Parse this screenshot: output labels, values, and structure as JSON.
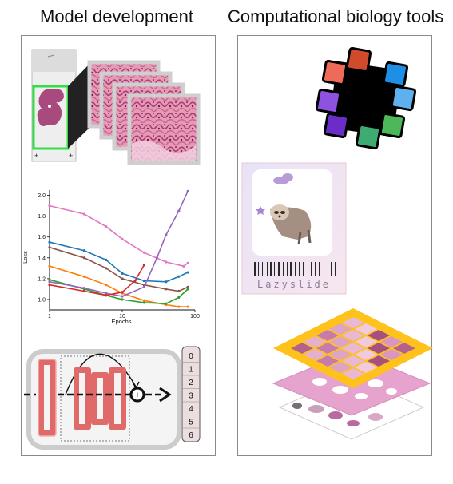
{
  "headings": {
    "left": "Model development",
    "right": "Computational biology tools"
  },
  "chart_data": {
    "type": "line",
    "xscale": "log",
    "xlim": [
      1,
      100
    ],
    "ylim": [
      0.9,
      2.05
    ],
    "xlabel": "Epochs",
    "ylabel": "Loss",
    "xticks": [
      "1",
      "10",
      "100"
    ],
    "yticks": [
      "1.0",
      "1.2",
      "1.4",
      "1.6",
      "1.8",
      "2.0"
    ],
    "grid": false,
    "series": [
      {
        "color": "#e377c2",
        "x": [
          1,
          3,
          6,
          10,
          20,
          40,
          70,
          80
        ],
        "y": [
          1.9,
          1.82,
          1.7,
          1.58,
          1.45,
          1.36,
          1.32,
          1.35
        ]
      },
      {
        "color": "#1f77b4",
        "x": [
          1,
          3,
          6,
          10,
          20,
          40,
          60,
          80
        ],
        "y": [
          1.55,
          1.47,
          1.38,
          1.25,
          1.18,
          1.17,
          1.22,
          1.26
        ]
      },
      {
        "color": "#8c564b",
        "x": [
          1,
          3,
          6,
          10,
          20,
          40,
          60,
          80
        ],
        "y": [
          1.5,
          1.4,
          1.3,
          1.2,
          1.14,
          1.1,
          1.08,
          1.12
        ]
      },
      {
        "color": "#ff7f0e",
        "x": [
          1,
          3,
          6,
          10,
          20,
          40,
          60,
          80
        ],
        "y": [
          1.32,
          1.22,
          1.14,
          1.06,
          0.99,
          0.95,
          0.93,
          0.93
        ]
      },
      {
        "color": "#2ca02c",
        "x": [
          1,
          3,
          6,
          10,
          20,
          40,
          60,
          80
        ],
        "y": [
          1.19,
          1.1,
          1.04,
          1.0,
          0.97,
          0.96,
          1.02,
          1.1
        ]
      },
      {
        "color": "#9467bd",
        "x": [
          1,
          3,
          6,
          10,
          20,
          30,
          40,
          60,
          80
        ],
        "y": [
          1.17,
          1.11,
          1.06,
          1.03,
          1.12,
          1.4,
          1.62,
          1.85,
          2.04
        ]
      },
      {
        "color": "#d62728",
        "x": [
          1,
          3,
          6,
          10,
          15,
          20
        ],
        "y": [
          1.14,
          1.08,
          1.04,
          1.07,
          1.18,
          1.33
        ]
      }
    ]
  },
  "class_labels": [
    "0",
    "1",
    "2",
    "3",
    "4",
    "5",
    "6"
  ],
  "barcode_text": "Lazyslide",
  "colors": {
    "slide_box": "#33dd44",
    "tissue": "#b14f7d",
    "resnet_block": "#e06a6a",
    "heatmap_frame": "#ffc21a"
  }
}
